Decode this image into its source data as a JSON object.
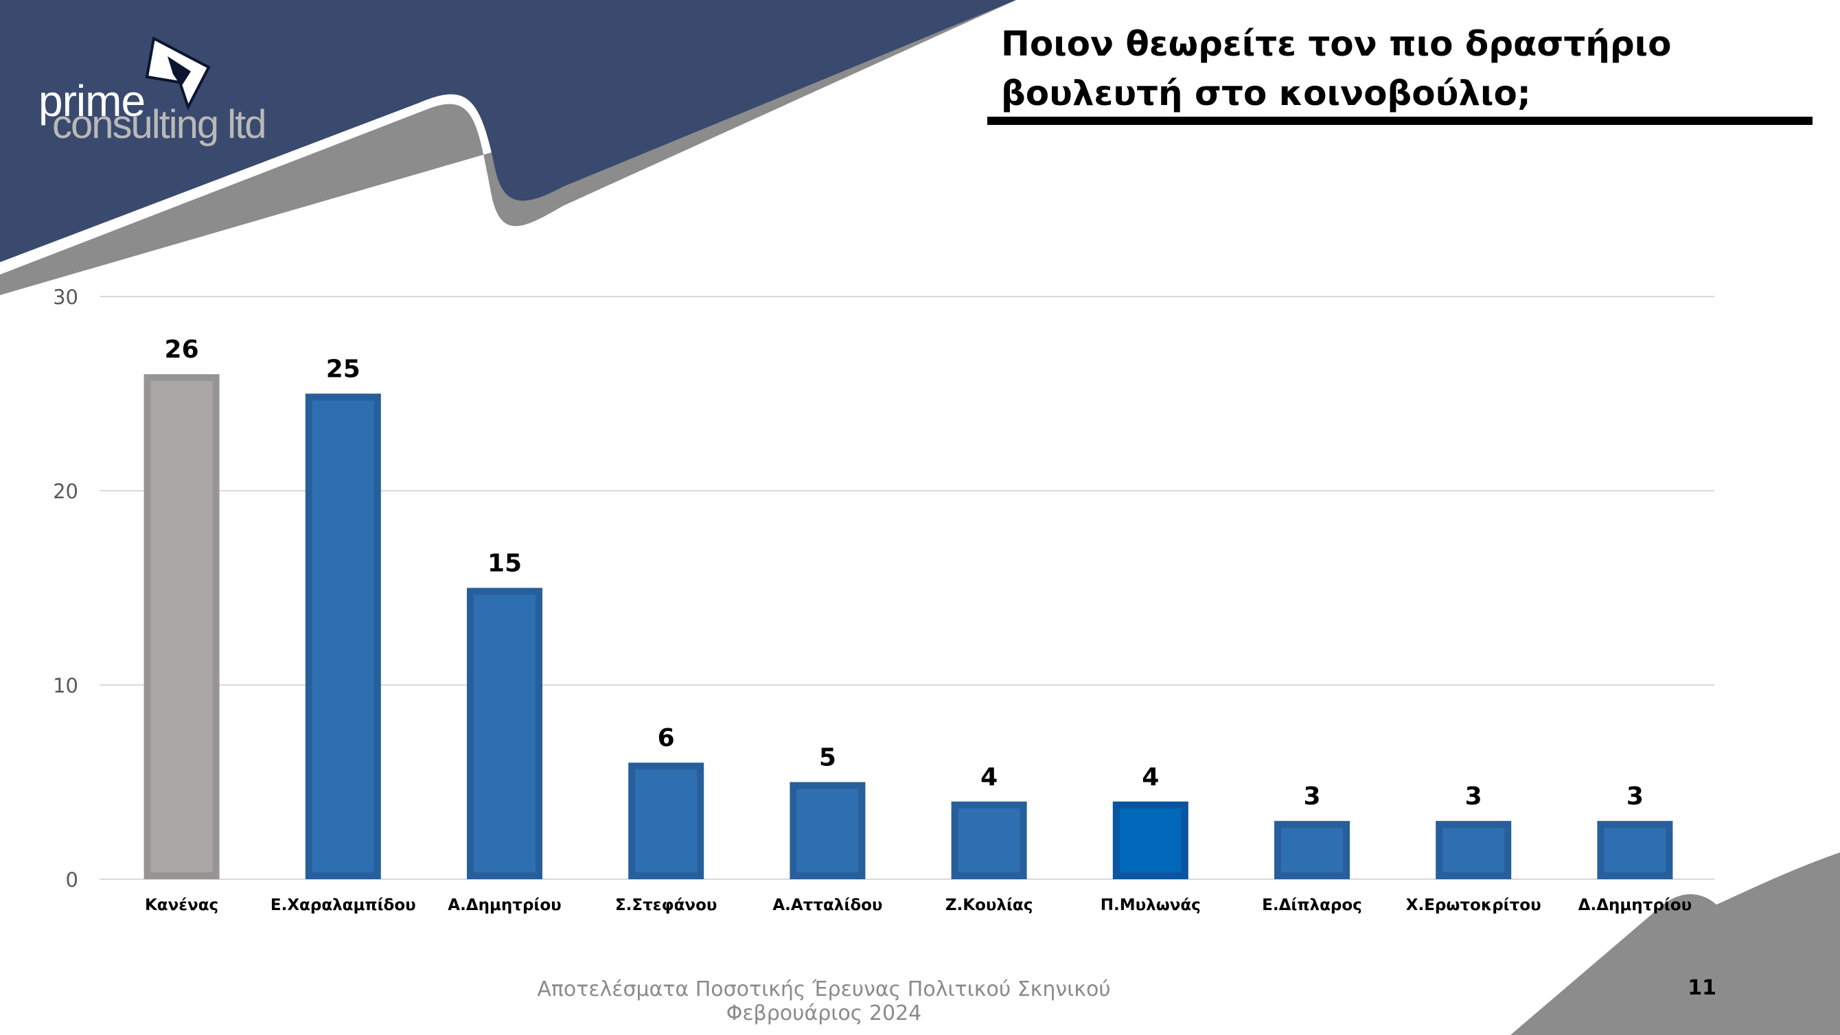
{
  "brand": {
    "logo_line1": "prime",
    "logo_line2": "consulting ltd",
    "primary_color": "#3a4a6e",
    "accent_gray": "#8c8c8c"
  },
  "slide": {
    "title": "Ποιον θεωρείτε τον πιο δραστήριο βουλευτή στο κοινοβούλιο;",
    "footer": "Αποτελέσματα Ποσοτικής Έρευνας Πολιτικού Σκηνικού Φεβρουάριος 2024",
    "page_number": "11"
  },
  "chart_data": {
    "type": "bar",
    "title": "",
    "xlabel": "",
    "ylabel": "",
    "categories": [
      "Κανένας",
      "Ε.Χαραλαμπίδου",
      "Α.Δημητρίου",
      "Σ.Στεφάνου",
      "Α.Ατταλίδου",
      "Ζ.Κουλίας",
      "Π.Μυλωνάς",
      "Ε.Δίπλαρος",
      "Χ.Ερωτοκρίτου",
      "Δ.Δημητρίου"
    ],
    "values": [
      26,
      25,
      15,
      6,
      5,
      4,
      4,
      3,
      3,
      3
    ],
    "ylim": [
      0,
      30
    ],
    "yticks": [
      0,
      10,
      20,
      30
    ],
    "grid": true,
    "legend": "none",
    "bar_colors": [
      "#aaa7a6",
      "#2e6fb2",
      "#2e6fb2",
      "#2e6fb2",
      "#2e6fb2",
      "#2e6fb2",
      "#0068b8",
      "#2e6fb2",
      "#2e6fb2",
      "#2e6fb2"
    ],
    "bar_border_colors": [
      "#979494",
      "#275f9c",
      "#275f9c",
      "#275f9c",
      "#275f9c",
      "#275f9c",
      "#0a55a0",
      "#275f9c",
      "#275f9c",
      "#275f9c"
    ]
  }
}
